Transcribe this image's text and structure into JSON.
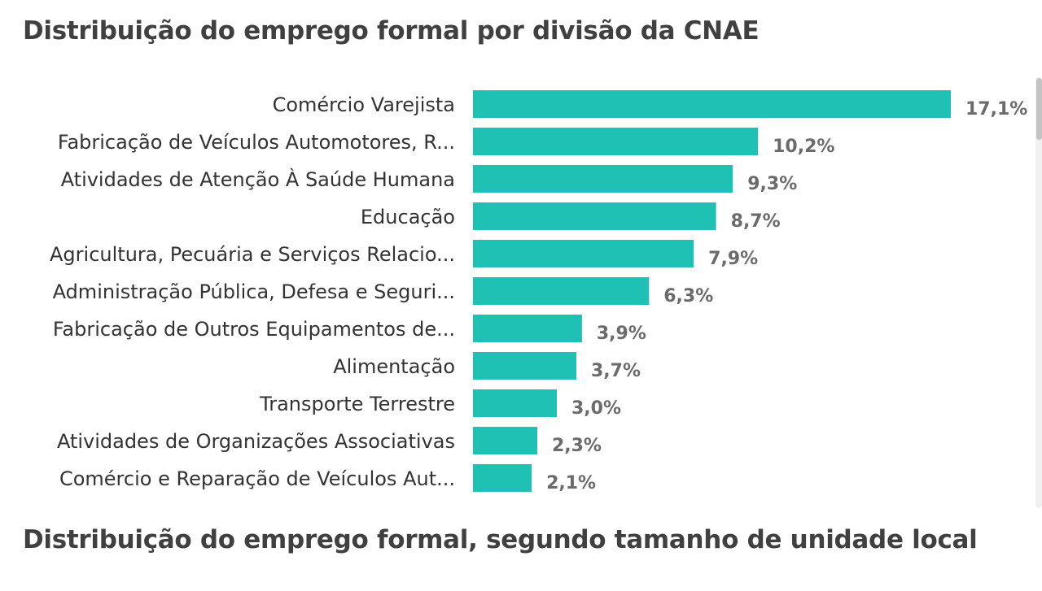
{
  "titles": {
    "chart1": "Distribuição do emprego formal por divisão da CNAE",
    "chart2": "Distribuição do emprego formal, segundo tamanho de unidade local"
  },
  "chart_data": {
    "type": "bar",
    "orientation": "horizontal",
    "title": "Distribuição do emprego formal por divisão da CNAE",
    "categories": [
      "Comércio Varejista",
      "Fabricação de Veículos Automotores, R...",
      "Atividades de Atenção À Saúde Humana",
      "Educação",
      "Agricultura, Pecuária e Serviços Relacio...",
      "Administração Pública, Defesa e Seguri...",
      "Fabricação de Outros Equipamentos de...",
      "Alimentação",
      "Transporte Terrestre",
      "Atividades de Organizações Associativas",
      "Comércio e Reparação de Veículos Aut..."
    ],
    "values": [
      17.1,
      10.2,
      9.3,
      8.7,
      7.9,
      6.3,
      3.9,
      3.7,
      3.0,
      2.3,
      2.1
    ],
    "value_labels": [
      "17,1%",
      "10,2%",
      "9,3%",
      "8,7%",
      "7,9%",
      "6,3%",
      "3,9%",
      "3,7%",
      "3,0%",
      "2,3%",
      "2,1%"
    ],
    "xlim": [
      0,
      17.1
    ],
    "grid": false,
    "legend": "none",
    "colors": {
      "bar": "#1fc1b4",
      "value_label": "#6b6b6b",
      "category_label": "#333333",
      "title": "#404040"
    }
  },
  "scrollbar": {
    "icon": "vertical-scrollbar"
  }
}
